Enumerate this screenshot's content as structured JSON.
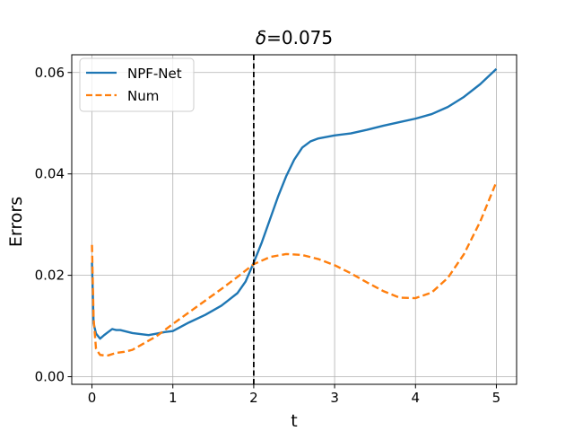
{
  "chart_data": {
    "type": "line",
    "title_prefix": "δ",
    "title_suffix": "=0.075",
    "xlabel": "t",
    "ylabel": "Errors",
    "xlim": [
      -0.25,
      5.25
    ],
    "ylim": [
      -0.0015,
      0.0635
    ],
    "xticks": [
      0,
      1,
      2,
      3,
      4,
      5
    ],
    "xtick_labels": [
      "0",
      "1",
      "2",
      "3",
      "4",
      "5"
    ],
    "yticks": [
      0.0,
      0.02,
      0.04,
      0.06
    ],
    "ytick_labels": [
      "0.00",
      "0.02",
      "0.04",
      "0.06"
    ],
    "grid": true,
    "legend_position": "top-left",
    "vline": {
      "x": 2,
      "style": "dashed",
      "color": "#000000"
    },
    "series": [
      {
        "name": "NPF-Net",
        "color": "#1f77b4",
        "style": "solid",
        "x": [
          0,
          0.02,
          0.05,
          0.1,
          0.15,
          0.2,
          0.25,
          0.3,
          0.35,
          0.4,
          0.5,
          0.6,
          0.7,
          0.8,
          0.9,
          1.0,
          1.2,
          1.4,
          1.6,
          1.8,
          1.9,
          2.0,
          2.1,
          2.2,
          2.3,
          2.4,
          2.5,
          2.6,
          2.7,
          2.8,
          3.0,
          3.2,
          3.4,
          3.6,
          3.8,
          4.0,
          4.2,
          4.4,
          4.6,
          4.8,
          5.0
        ],
        "y": [
          0.0225,
          0.0105,
          0.0085,
          0.0075,
          0.0082,
          0.0088,
          0.0094,
          0.0092,
          0.0092,
          0.009,
          0.0086,
          0.0084,
          0.0082,
          0.0085,
          0.0088,
          0.009,
          0.0107,
          0.0122,
          0.014,
          0.0165,
          0.0188,
          0.0225,
          0.0265,
          0.031,
          0.0355,
          0.0395,
          0.0428,
          0.0452,
          0.0464,
          0.047,
          0.0476,
          0.048,
          0.0487,
          0.0495,
          0.0502,
          0.0509,
          0.0518,
          0.0532,
          0.0552,
          0.0577,
          0.0607
        ]
      },
      {
        "name": "Num",
        "color": "#ff7f0e",
        "style": "dashed",
        "x": [
          0,
          0.02,
          0.05,
          0.1,
          0.15,
          0.2,
          0.3,
          0.4,
          0.5,
          0.6,
          0.8,
          1.0,
          1.2,
          1.4,
          1.6,
          1.8,
          2.0,
          2.2,
          2.4,
          2.6,
          2.8,
          3.0,
          3.2,
          3.4,
          3.6,
          3.8,
          4.0,
          4.2,
          4.4,
          4.6,
          4.8,
          5.0
        ],
        "y": [
          0.026,
          0.0115,
          0.0055,
          0.0043,
          0.0042,
          0.0042,
          0.0047,
          0.0049,
          0.0053,
          0.0062,
          0.008,
          0.0104,
          0.0127,
          0.015,
          0.0173,
          0.0197,
          0.0222,
          0.0236,
          0.0242,
          0.024,
          0.0232,
          0.022,
          0.0204,
          0.0186,
          0.0169,
          0.0156,
          0.0155,
          0.0166,
          0.0195,
          0.0242,
          0.0306,
          0.0384
        ]
      }
    ]
  }
}
